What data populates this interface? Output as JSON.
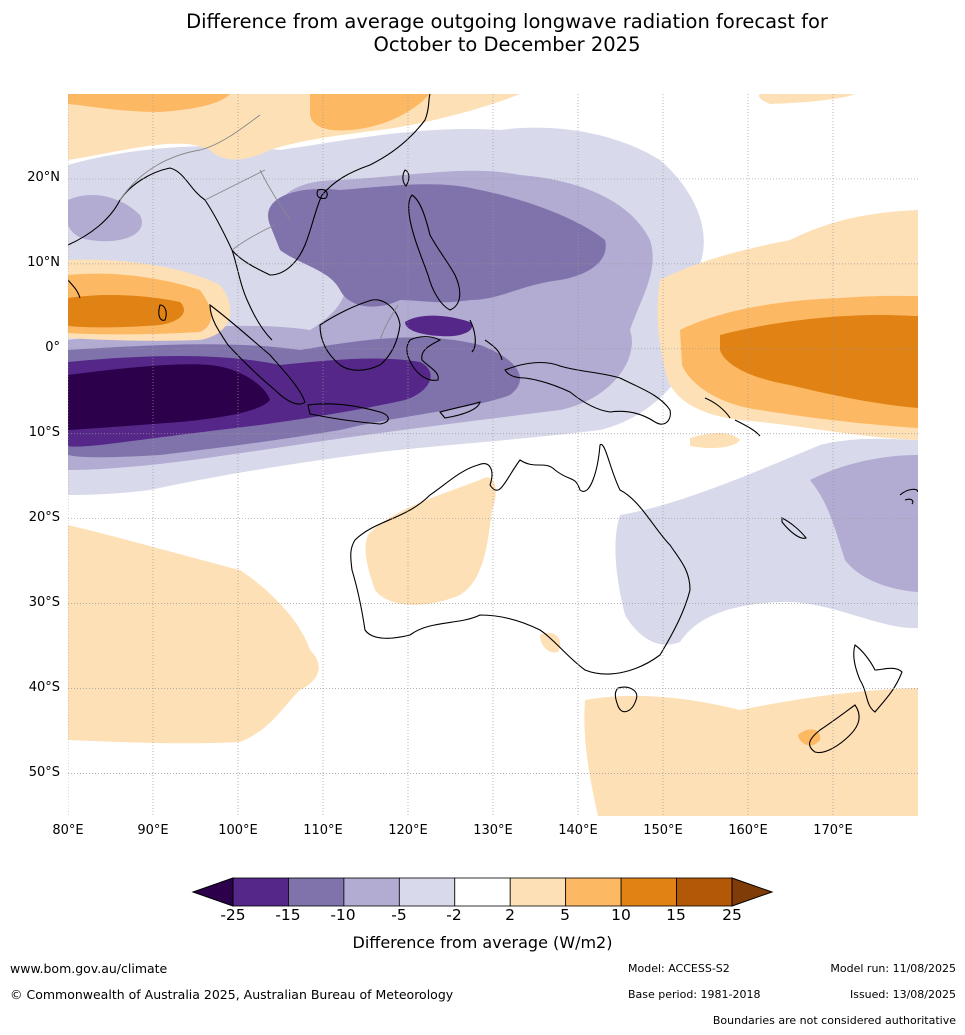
{
  "title_line1": "Difference from average outgoing longwave radiation forecast for",
  "title_line2": "October to December 2025",
  "map": {
    "projection": "equirectangular",
    "lon_range": [
      80,
      180
    ],
    "lat_range": [
      -55,
      30
    ],
    "colors": {
      "lt_-25": "#2d004b",
      "-25_-15": "#542788",
      "-15_-10": "#8073ac",
      "-10_-5": "#b2abd2",
      "-5_-2": "#d8daeb",
      "-2_2": "#ffffff",
      "2_5": "#fee0b6",
      "5_10": "#fdb863",
      "10_15": "#e08214",
      "15_25": "#b35806",
      "gt_25": "#7f3b08"
    }
  },
  "lat_labels": [
    "20°N",
    "10°N",
    "0°",
    "10°S",
    "20°S",
    "30°S",
    "40°S",
    "50°S"
  ],
  "lon_labels": [
    "80°E",
    "90°E",
    "100°E",
    "110°E",
    "120°E",
    "130°E",
    "140°E",
    "150°E",
    "160°E",
    "170°E"
  ],
  "colorbar": {
    "ticks": [
      "-25",
      "-15",
      "-10",
      "-5",
      "-2",
      "2",
      "5",
      "10",
      "15",
      "25"
    ],
    "label": "Difference from average (W/m2)",
    "colors": [
      "#542788",
      "#8073ac",
      "#b2abd2",
      "#d8daeb",
      "#ffffff",
      "#fee0b6",
      "#fdb863",
      "#e08214",
      "#b35806"
    ],
    "low_extend_color": "#2d004b",
    "high_extend_color": "#7f3b08"
  },
  "footer": {
    "url": "www.bom.gov.au/climate",
    "copyright": "© Commonwealth of Australia 2025, Australian Bureau of Meteorology",
    "model": "Model: ACCESS-S2",
    "base_period": "Base period: 1981-2018",
    "model_run": "Model run: 11/08/2025",
    "issued": "Issued: 13/08/2025",
    "boundaries": "Boundaries are not considered authoritative"
  }
}
